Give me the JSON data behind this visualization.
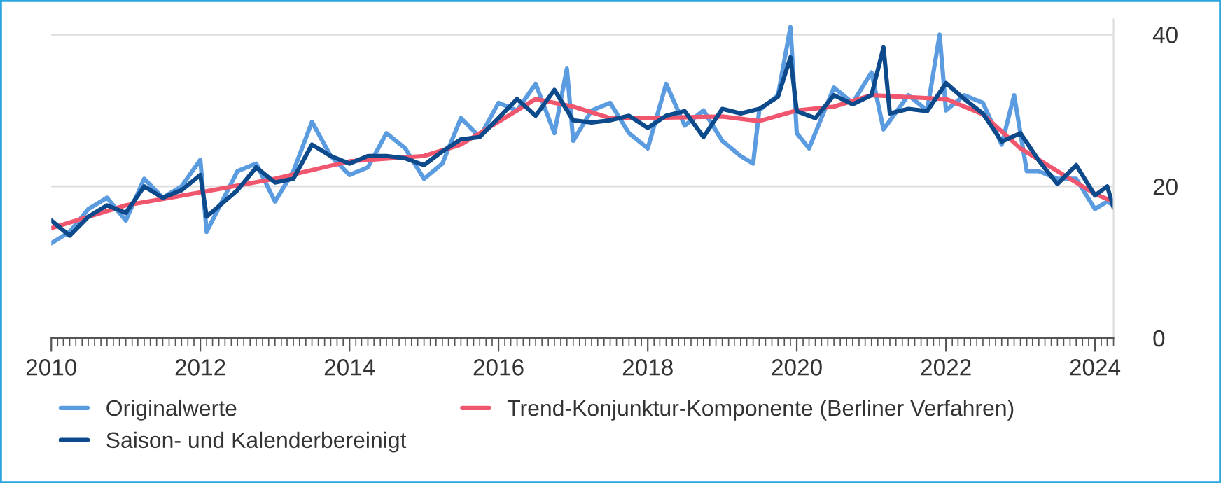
{
  "chart_data": {
    "type": "line",
    "xlim": [
      "2010-01",
      "2024-04"
    ],
    "xticks": [
      "2010",
      "2012",
      "2014",
      "2016",
      "2018",
      "2020",
      "2022",
      "2024"
    ],
    "ylim": [
      0,
      42
    ],
    "yticks": [
      0,
      20,
      40
    ],
    "grid": "y",
    "legend": "bottom",
    "series": [
      {
        "name": "Originalwerte",
        "color": "#5b9be0",
        "x": [
          "2010-01",
          "2010-04",
          "2010-07",
          "2010-10",
          "2011-01",
          "2011-04",
          "2011-07",
          "2011-10",
          "2012-01",
          "2012-02",
          "2012-07",
          "2012-10",
          "2013-01",
          "2013-04",
          "2013-07",
          "2013-10",
          "2014-01",
          "2014-04",
          "2014-07",
          "2014-10",
          "2015-01",
          "2015-04",
          "2015-07",
          "2015-10",
          "2016-01",
          "2016-04",
          "2016-07",
          "2016-10",
          "2016-12",
          "2017-01",
          "2017-04",
          "2017-07",
          "2017-10",
          "2018-01",
          "2018-04",
          "2018-07",
          "2018-10",
          "2019-01",
          "2019-04",
          "2019-06",
          "2019-07",
          "2019-10",
          "2019-12",
          "2020-01",
          "2020-03",
          "2020-07",
          "2020-10",
          "2021-01",
          "2021-03",
          "2021-07",
          "2021-10",
          "2021-12",
          "2022-01",
          "2022-04",
          "2022-07",
          "2022-10",
          "2022-12",
          "2023-02",
          "2023-04",
          "2023-07",
          "2023-10",
          "2024-01",
          "2024-03",
          "2024-04"
        ],
        "values": [
          12.5,
          14,
          17,
          18.5,
          15.5,
          21,
          18.5,
          20,
          23.5,
          14,
          22,
          23,
          18,
          22,
          28.5,
          24,
          21.5,
          22.5,
          27,
          25,
          21,
          23,
          29,
          26.5,
          31,
          30,
          33.5,
          27,
          35.5,
          26,
          30,
          31,
          27,
          25,
          33.5,
          28,
          30,
          26,
          24,
          23,
          30,
          32,
          41,
          27,
          25,
          33,
          31,
          35,
          27.5,
          32,
          30,
          40,
          30,
          32,
          31,
          25.5,
          32,
          22,
          22,
          21,
          21,
          17,
          18,
          17.5
        ]
      },
      {
        "name": "Trend-Konjunktur-Komponente (Berliner Verfahren)",
        "color": "#f0566e",
        "x": [
          "2010-01",
          "2011-01",
          "2012-01",
          "2013-01",
          "2014-01",
          "2015-01",
          "2015-07",
          "2016-01",
          "2016-07",
          "2017-01",
          "2017-07",
          "2018-01",
          "2019-01",
          "2019-07",
          "2020-01",
          "2020-07",
          "2021-01",
          "2022-01",
          "2022-07",
          "2023-01",
          "2023-07",
          "2024-01",
          "2024-04"
        ],
        "values": [
          14.5,
          17.5,
          19.2,
          21,
          23.3,
          24,
          25.5,
          28.5,
          31.5,
          30.5,
          29,
          29,
          29.2,
          28.6,
          30,
          30.5,
          32,
          31.5,
          29.5,
          25,
          22,
          19,
          18
        ]
      },
      {
        "name": "Saison- und Kalenderbereinigt",
        "color": "#0d4a8c",
        "x": [
          "2010-01",
          "2010-04",
          "2010-07",
          "2010-10",
          "2011-01",
          "2011-04",
          "2011-07",
          "2011-10",
          "2012-01",
          "2012-02",
          "2012-07",
          "2012-10",
          "2013-01",
          "2013-04",
          "2013-07",
          "2013-10",
          "2014-01",
          "2014-04",
          "2014-07",
          "2014-10",
          "2015-01",
          "2015-04",
          "2015-07",
          "2015-10",
          "2016-01",
          "2016-04",
          "2016-07",
          "2016-10",
          "2017-01",
          "2017-04",
          "2017-07",
          "2017-10",
          "2018-01",
          "2018-04",
          "2018-07",
          "2018-10",
          "2019-01",
          "2019-04",
          "2019-07",
          "2019-10",
          "2019-12",
          "2020-01",
          "2020-04",
          "2020-07",
          "2020-10",
          "2021-01",
          "2021-03",
          "2021-04",
          "2021-07",
          "2021-10",
          "2022-01",
          "2022-04",
          "2022-07",
          "2022-10",
          "2023-01",
          "2023-04",
          "2023-07",
          "2023-10",
          "2024-01",
          "2024-03",
          "2024-04"
        ],
        "values": [
          15.5,
          13.5,
          16,
          17.5,
          16.5,
          20,
          18.5,
          19.5,
          21.5,
          16,
          19.5,
          22.5,
          20.5,
          21,
          25.5,
          24,
          23,
          24,
          24,
          23.7,
          22.8,
          24.6,
          26.2,
          26.5,
          29,
          31.5,
          29.3,
          32.7,
          28.7,
          28.4,
          28.7,
          29.3,
          27.7,
          29.3,
          29.9,
          26.5,
          30.2,
          29.6,
          30.2,
          31.8,
          37,
          29.9,
          29,
          32,
          30.8,
          32,
          38.3,
          29.6,
          30.2,
          29.9,
          33.6,
          31.5,
          29.6,
          25.9,
          27,
          23.4,
          20.3,
          22.8,
          18.8,
          20,
          17.2
        ]
      }
    ]
  }
}
